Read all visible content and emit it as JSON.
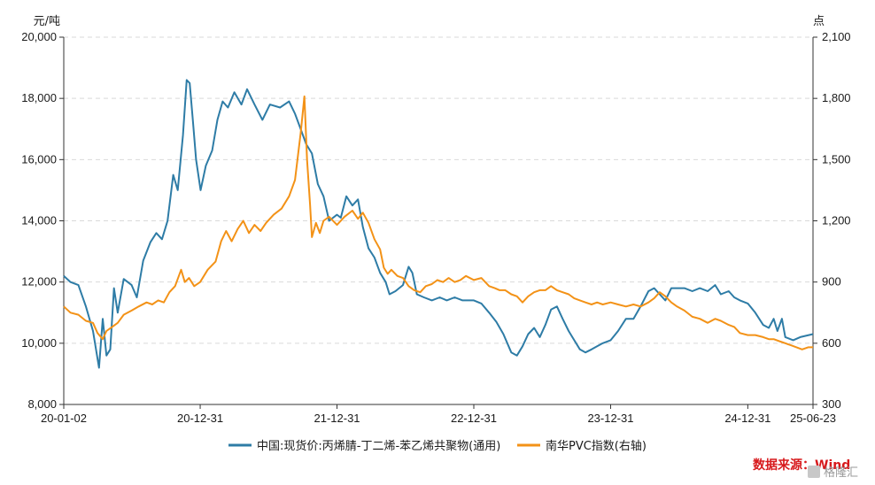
{
  "chart_data": {
    "type": "line",
    "left_axis": {
      "unit_label": "元/吨",
      "range": [
        8000,
        20000
      ],
      "ticks": [
        8000,
        10000,
        12000,
        14000,
        16000,
        18000,
        20000
      ],
      "tick_labels": [
        "8,000",
        "10,000",
        "12,000",
        "14,000",
        "16,000",
        "18,000",
        "20,000"
      ]
    },
    "right_axis": {
      "unit_label": "点",
      "range": [
        300,
        2100
      ],
      "ticks": [
        300,
        600,
        900,
        1200,
        1500,
        1800,
        2100
      ],
      "tick_labels": [
        "300",
        "600",
        "900",
        "1,200",
        "1,500",
        "1,800",
        "2,100"
      ]
    },
    "x_axis": {
      "range": [
        "2020-01-02",
        "2025-06-23"
      ],
      "ticks": [
        "2020-01-02",
        "2020-12-31",
        "2021-12-31",
        "2022-12-31",
        "2023-12-31",
        "2024-12-31",
        "2025-06-23"
      ],
      "tick_labels": [
        "20-01-02",
        "20-12-31",
        "21-12-31",
        "22-12-31",
        "23-12-31",
        "24-12-31",
        "25-06-23"
      ]
    },
    "grid": "horizontal dashed",
    "legend_position": "bottom",
    "series": [
      {
        "name": "中国:现货价:丙烯腈-丁二烯-苯乙烯共聚物(通用)",
        "axis": "left",
        "color": "#2e7ca6",
        "points": [
          [
            "2020-01-02",
            12200
          ],
          [
            "2020-01-20",
            12000
          ],
          [
            "2020-02-10",
            11900
          ],
          [
            "2020-03-01",
            11200
          ],
          [
            "2020-03-20",
            10400
          ],
          [
            "2020-04-05",
            9200
          ],
          [
            "2020-04-15",
            10800
          ],
          [
            "2020-04-25",
            9600
          ],
          [
            "2020-05-05",
            9800
          ],
          [
            "2020-05-15",
            11800
          ],
          [
            "2020-05-25",
            11000
          ],
          [
            "2020-06-10",
            12100
          ],
          [
            "2020-07-01",
            11900
          ],
          [
            "2020-07-15",
            11500
          ],
          [
            "2020-08-01",
            12700
          ],
          [
            "2020-08-20",
            13300
          ],
          [
            "2020-09-05",
            13600
          ],
          [
            "2020-09-20",
            13400
          ],
          [
            "2020-10-05",
            14000
          ],
          [
            "2020-10-20",
            15500
          ],
          [
            "2020-11-01",
            15000
          ],
          [
            "2020-11-15",
            16800
          ],
          [
            "2020-11-25",
            18600
          ],
          [
            "2020-12-03",
            18500
          ],
          [
            "2020-12-12",
            17200
          ],
          [
            "2020-12-20",
            16000
          ],
          [
            "2021-01-01",
            15000
          ],
          [
            "2021-01-15",
            15800
          ],
          [
            "2021-02-01",
            16300
          ],
          [
            "2021-02-15",
            17300
          ],
          [
            "2021-03-01",
            17900
          ],
          [
            "2021-03-15",
            17700
          ],
          [
            "2021-04-01",
            18200
          ],
          [
            "2021-04-20",
            17800
          ],
          [
            "2021-05-05",
            18300
          ],
          [
            "2021-05-25",
            17800
          ],
          [
            "2021-06-15",
            17300
          ],
          [
            "2021-07-05",
            17800
          ],
          [
            "2021-08-01",
            17700
          ],
          [
            "2021-08-25",
            17900
          ],
          [
            "2021-09-10",
            17500
          ],
          [
            "2021-09-25",
            17000
          ],
          [
            "2021-10-10",
            16500
          ],
          [
            "2021-10-25",
            16200
          ],
          [
            "2021-11-10",
            15200
          ],
          [
            "2021-11-25",
            14800
          ],
          [
            "2021-12-10",
            14000
          ],
          [
            "2021-12-31",
            14200
          ],
          [
            "2022-01-10",
            14100
          ],
          [
            "2022-01-25",
            14800
          ],
          [
            "2022-02-10",
            14500
          ],
          [
            "2022-02-25",
            14700
          ],
          [
            "2022-03-10",
            13800
          ],
          [
            "2022-03-25",
            13100
          ],
          [
            "2022-04-10",
            12800
          ],
          [
            "2022-04-25",
            12300
          ],
          [
            "2022-05-10",
            12000
          ],
          [
            "2022-05-20",
            11600
          ],
          [
            "2022-06-05",
            11700
          ],
          [
            "2022-06-25",
            11900
          ],
          [
            "2022-07-10",
            12500
          ],
          [
            "2022-07-20",
            12300
          ],
          [
            "2022-08-01",
            11600
          ],
          [
            "2022-08-20",
            11500
          ],
          [
            "2022-09-10",
            11400
          ],
          [
            "2022-10-01",
            11500
          ],
          [
            "2022-10-20",
            11400
          ],
          [
            "2022-11-10",
            11500
          ],
          [
            "2022-12-01",
            11400
          ],
          [
            "2022-12-31",
            11400
          ],
          [
            "2023-01-20",
            11300
          ],
          [
            "2023-02-10",
            11000
          ],
          [
            "2023-03-01",
            10700
          ],
          [
            "2023-03-20",
            10300
          ],
          [
            "2023-04-10",
            9700
          ],
          [
            "2023-04-25",
            9600
          ],
          [
            "2023-05-10",
            9900
          ],
          [
            "2023-05-25",
            10300
          ],
          [
            "2023-06-10",
            10500
          ],
          [
            "2023-06-25",
            10200
          ],
          [
            "2023-07-10",
            10600
          ],
          [
            "2023-07-25",
            11100
          ],
          [
            "2023-08-10",
            11200
          ],
          [
            "2023-08-25",
            10800
          ],
          [
            "2023-09-10",
            10400
          ],
          [
            "2023-09-25",
            10100
          ],
          [
            "2023-10-10",
            9800
          ],
          [
            "2023-10-25",
            9700
          ],
          [
            "2023-11-10",
            9800
          ],
          [
            "2023-11-25",
            9900
          ],
          [
            "2023-12-10",
            10000
          ],
          [
            "2023-12-31",
            10100
          ],
          [
            "2024-01-20",
            10400
          ],
          [
            "2024-02-10",
            10800
          ],
          [
            "2024-03-01",
            10800
          ],
          [
            "2024-03-20",
            11200
          ],
          [
            "2024-04-10",
            11700
          ],
          [
            "2024-04-25",
            11800
          ],
          [
            "2024-05-10",
            11600
          ],
          [
            "2024-05-25",
            11400
          ],
          [
            "2024-06-10",
            11800
          ],
          [
            "2024-06-25",
            11800
          ],
          [
            "2024-07-15",
            11800
          ],
          [
            "2024-08-05",
            11700
          ],
          [
            "2024-08-25",
            11800
          ],
          [
            "2024-09-15",
            11700
          ],
          [
            "2024-10-05",
            11900
          ],
          [
            "2024-10-20",
            11600
          ],
          [
            "2024-11-10",
            11700
          ],
          [
            "2024-11-25",
            11500
          ],
          [
            "2024-12-10",
            11400
          ],
          [
            "2024-12-31",
            11300
          ],
          [
            "2025-01-20",
            11000
          ],
          [
            "2025-02-10",
            10600
          ],
          [
            "2025-02-25",
            10500
          ],
          [
            "2025-03-10",
            10800
          ],
          [
            "2025-03-20",
            10400
          ],
          [
            "2025-04-01",
            10800
          ],
          [
            "2025-04-10",
            10200
          ],
          [
            "2025-05-01",
            10100
          ],
          [
            "2025-05-20",
            10200
          ],
          [
            "2025-06-23",
            10300
          ]
        ]
      },
      {
        "name": "南华PVC指数(右轴)",
        "axis": "right",
        "color": "#f39217",
        "points": [
          [
            "2020-01-02",
            780
          ],
          [
            "2020-01-20",
            750
          ],
          [
            "2020-02-10",
            740
          ],
          [
            "2020-03-01",
            710
          ],
          [
            "2020-03-20",
            700
          ],
          [
            "2020-04-01",
            650
          ],
          [
            "2020-04-15",
            620
          ],
          [
            "2020-04-25",
            660
          ],
          [
            "2020-05-10",
            680
          ],
          [
            "2020-05-25",
            700
          ],
          [
            "2020-06-10",
            740
          ],
          [
            "2020-07-01",
            760
          ],
          [
            "2020-07-20",
            780
          ],
          [
            "2020-08-10",
            800
          ],
          [
            "2020-08-25",
            790
          ],
          [
            "2020-09-10",
            810
          ],
          [
            "2020-09-25",
            800
          ],
          [
            "2020-10-10",
            850
          ],
          [
            "2020-10-25",
            880
          ],
          [
            "2020-11-10",
            960
          ],
          [
            "2020-11-20",
            900
          ],
          [
            "2020-12-01",
            920
          ],
          [
            "2020-12-15",
            880
          ],
          [
            "2020-12-31",
            900
          ],
          [
            "2021-01-20",
            960
          ],
          [
            "2021-02-10",
            1000
          ],
          [
            "2021-02-25",
            1100
          ],
          [
            "2021-03-10",
            1150
          ],
          [
            "2021-03-25",
            1100
          ],
          [
            "2021-04-10",
            1160
          ],
          [
            "2021-04-25",
            1200
          ],
          [
            "2021-05-10",
            1140
          ],
          [
            "2021-05-25",
            1180
          ],
          [
            "2021-06-10",
            1150
          ],
          [
            "2021-06-25",
            1190
          ],
          [
            "2021-07-15",
            1230
          ],
          [
            "2021-08-05",
            1260
          ],
          [
            "2021-08-25",
            1320
          ],
          [
            "2021-09-10",
            1400
          ],
          [
            "2021-09-25",
            1630
          ],
          [
            "2021-10-05",
            1810
          ],
          [
            "2021-10-12",
            1500
          ],
          [
            "2021-10-20",
            1280
          ],
          [
            "2021-10-25",
            1120
          ],
          [
            "2021-11-05",
            1190
          ],
          [
            "2021-11-15",
            1140
          ],
          [
            "2021-11-25",
            1200
          ],
          [
            "2021-12-10",
            1220
          ],
          [
            "2021-12-31",
            1180
          ],
          [
            "2022-01-20",
            1220
          ],
          [
            "2022-02-10",
            1250
          ],
          [
            "2022-02-25",
            1210
          ],
          [
            "2022-03-10",
            1240
          ],
          [
            "2022-03-25",
            1190
          ],
          [
            "2022-04-10",
            1110
          ],
          [
            "2022-04-25",
            1060
          ],
          [
            "2022-05-05",
            970
          ],
          [
            "2022-05-15",
            940
          ],
          [
            "2022-05-25",
            960
          ],
          [
            "2022-06-10",
            930
          ],
          [
            "2022-06-25",
            920
          ],
          [
            "2022-07-10",
            880
          ],
          [
            "2022-07-25",
            860
          ],
          [
            "2022-08-10",
            850
          ],
          [
            "2022-08-25",
            880
          ],
          [
            "2022-09-10",
            890
          ],
          [
            "2022-09-25",
            910
          ],
          [
            "2022-10-10",
            900
          ],
          [
            "2022-10-25",
            920
          ],
          [
            "2022-11-10",
            900
          ],
          [
            "2022-11-25",
            910
          ],
          [
            "2022-12-10",
            930
          ],
          [
            "2022-12-31",
            910
          ],
          [
            "2023-01-20",
            920
          ],
          [
            "2023-02-10",
            880
          ],
          [
            "2023-02-25",
            870
          ],
          [
            "2023-03-10",
            860
          ],
          [
            "2023-03-25",
            860
          ],
          [
            "2023-04-10",
            840
          ],
          [
            "2023-04-25",
            830
          ],
          [
            "2023-05-10",
            800
          ],
          [
            "2023-05-25",
            830
          ],
          [
            "2023-06-10",
            850
          ],
          [
            "2023-06-25",
            860
          ],
          [
            "2023-07-10",
            860
          ],
          [
            "2023-07-25",
            880
          ],
          [
            "2023-08-10",
            860
          ],
          [
            "2023-08-25",
            850
          ],
          [
            "2023-09-10",
            840
          ],
          [
            "2023-09-25",
            820
          ],
          [
            "2023-10-10",
            810
          ],
          [
            "2023-10-25",
            800
          ],
          [
            "2023-11-10",
            790
          ],
          [
            "2023-11-25",
            800
          ],
          [
            "2023-12-10",
            790
          ],
          [
            "2023-12-31",
            800
          ],
          [
            "2024-01-20",
            790
          ],
          [
            "2024-02-10",
            780
          ],
          [
            "2024-03-01",
            790
          ],
          [
            "2024-03-20",
            780
          ],
          [
            "2024-04-10",
            800
          ],
          [
            "2024-04-25",
            820
          ],
          [
            "2024-05-10",
            850
          ],
          [
            "2024-05-25",
            830
          ],
          [
            "2024-06-10",
            800
          ],
          [
            "2024-06-25",
            780
          ],
          [
            "2024-07-15",
            760
          ],
          [
            "2024-08-05",
            730
          ],
          [
            "2024-08-25",
            720
          ],
          [
            "2024-09-15",
            700
          ],
          [
            "2024-10-05",
            720
          ],
          [
            "2024-10-20",
            710
          ],
          [
            "2024-11-10",
            690
          ],
          [
            "2024-11-25",
            680
          ],
          [
            "2024-12-10",
            650
          ],
          [
            "2024-12-31",
            640
          ],
          [
            "2025-01-20",
            640
          ],
          [
            "2025-02-10",
            630
          ],
          [
            "2025-02-25",
            620
          ],
          [
            "2025-03-10",
            620
          ],
          [
            "2025-03-25",
            610
          ],
          [
            "2025-04-10",
            600
          ],
          [
            "2025-04-25",
            590
          ],
          [
            "2025-05-10",
            580
          ],
          [
            "2025-05-25",
            570
          ],
          [
            "2025-06-10",
            580
          ],
          [
            "2025-06-23",
            580
          ]
        ]
      }
    ]
  },
  "source": "数据来源：Wind",
  "watermark": "格隆汇"
}
